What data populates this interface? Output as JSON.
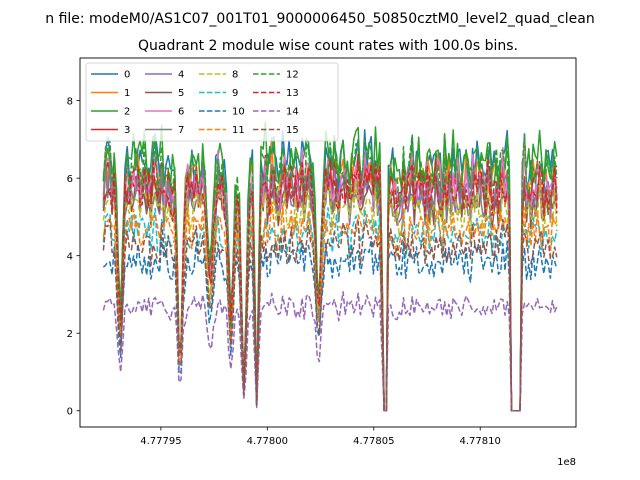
{
  "suptitle": "n file: modeM0/AS1C07_001T01_9000006450_50850cztM0_level2_quad_clean",
  "chart_data": {
    "type": "line",
    "title": "Quadrant 2 module wise count rates with 100.0s bins.",
    "xlabel": "",
    "ylabel": "",
    "x_offset_label": "1e8",
    "xlim": [
      477791.2,
      477814.5
    ],
    "ylim": [
      -0.42,
      9.1
    ],
    "x_ticks": [
      477795,
      477800,
      477805,
      477810
    ],
    "x_tick_labels": [
      "4.77795",
      "4.77800",
      "4.77805",
      "4.77810"
    ],
    "y_ticks": [
      0,
      2,
      4,
      6,
      8
    ],
    "y_tick_labels": [
      "0",
      "2",
      "4",
      "6",
      "8"
    ],
    "grid": false,
    "legend_position": "upper-left",
    "legend_columns": 4,
    "x_range": [
      477792.3,
      477813.6
    ],
    "dips": [
      {
        "center": 477793.1,
        "depth": 0.6
      },
      {
        "center": 477795.9,
        "depth": 0.8
      },
      {
        "center": 477797.3,
        "depth": 0.45
      },
      {
        "center": 477798.3,
        "depth": 0.6
      },
      {
        "center": 477798.9,
        "depth": 0.9
      },
      {
        "center": 477799.5,
        "depth": 0.97
      },
      {
        "center": 477802.4,
        "depth": 0.55
      },
      {
        "center": 477805.5,
        "depth": 1.0
      },
      {
        "center": 477811.6,
        "depth": 1.0
      }
    ],
    "series": [
      {
        "name": "0",
        "color": "#1f77b4",
        "dashed": false,
        "level": 6.4
      },
      {
        "name": "1",
        "color": "#ff7f0e",
        "dashed": false,
        "level": 6.0
      },
      {
        "name": "2",
        "color": "#2ca02c",
        "dashed": false,
        "level": 6.5
      },
      {
        "name": "3",
        "color": "#d62728",
        "dashed": false,
        "level": 5.8
      },
      {
        "name": "4",
        "color": "#9467bd",
        "dashed": false,
        "level": 5.6
      },
      {
        "name": "5",
        "color": "#8c564b",
        "dashed": false,
        "level": 5.5
      },
      {
        "name": "6",
        "color": "#e377c2",
        "dashed": false,
        "level": 5.9
      },
      {
        "name": "7",
        "color": "#7f7f7f",
        "dashed": false,
        "level": 5.6
      },
      {
        "name": "8",
        "color": "#bcbd22",
        "dashed": true,
        "level": 5.2
      },
      {
        "name": "9",
        "color": "#17becf",
        "dashed": true,
        "level": 4.6
      },
      {
        "name": "10",
        "color": "#1f77b4",
        "dashed": true,
        "level": 3.9
      },
      {
        "name": "11",
        "color": "#ff7f0e",
        "dashed": true,
        "level": 4.7
      },
      {
        "name": "12",
        "color": "#2ca02c",
        "dashed": true,
        "level": 6.2
      },
      {
        "name": "13",
        "color": "#d62728",
        "dashed": true,
        "level": 5.7
      },
      {
        "name": "14",
        "color": "#9467bd",
        "dashed": true,
        "level": 2.7
      },
      {
        "name": "15",
        "color": "#8c564b",
        "dashed": true,
        "level": 4.3
      }
    ]
  }
}
